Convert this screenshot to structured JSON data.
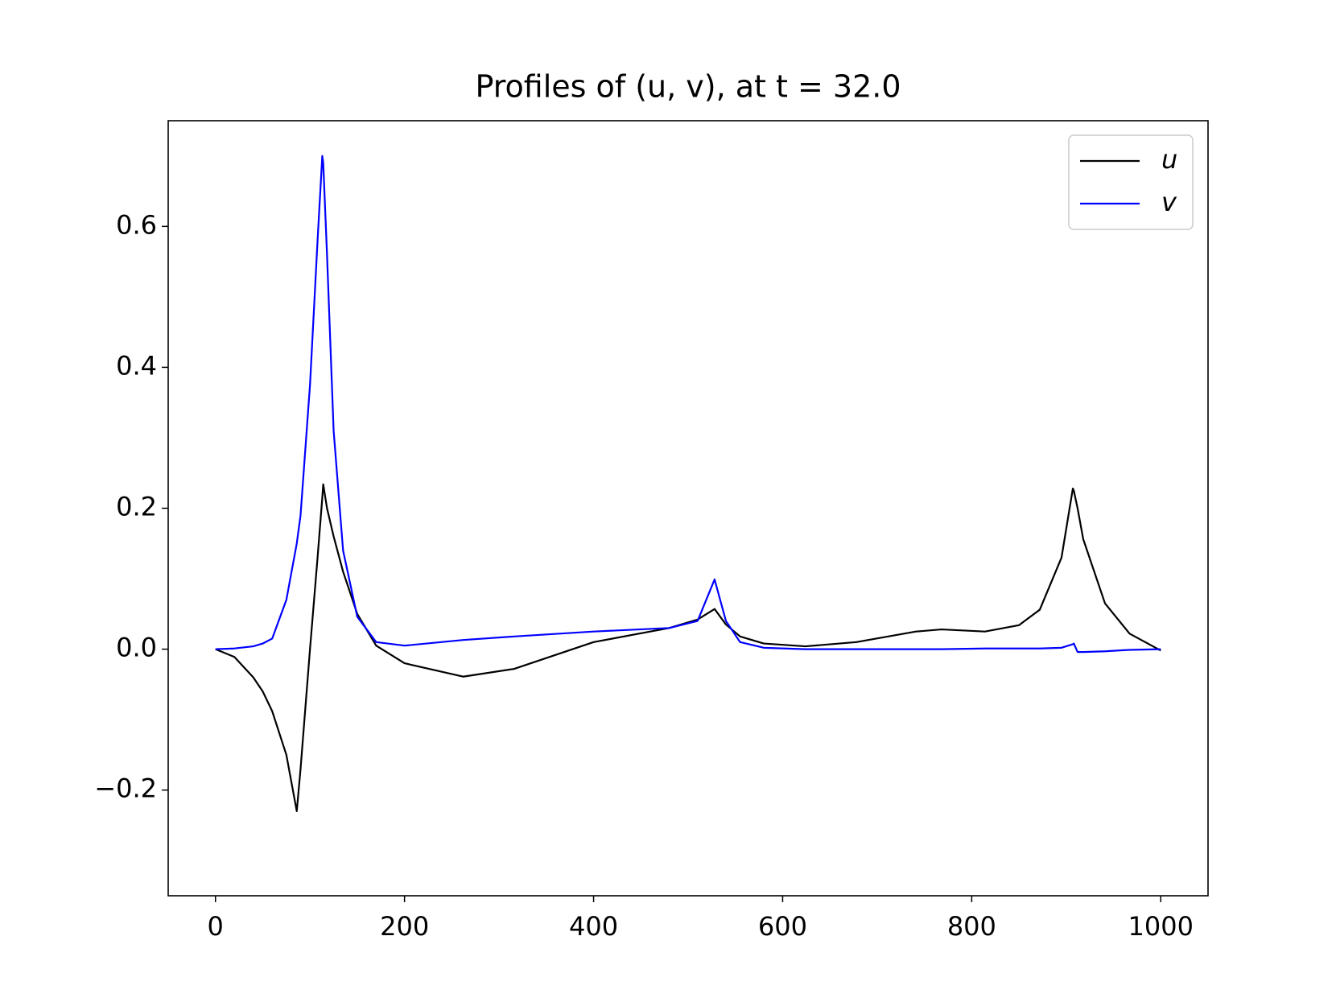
{
  "chart_data": {
    "type": "line",
    "title": "Profiles of (u, v), at t = 32.0",
    "x": [
      0,
      20,
      40,
      50,
      60,
      75,
      86,
      90,
      100,
      108,
      113,
      114,
      118,
      125,
      135,
      150,
      170,
      200,
      262,
      316,
      400,
      480,
      510,
      528,
      540,
      555,
      580,
      624,
      678,
      741,
      768,
      814,
      850,
      872,
      895,
      907,
      908,
      912,
      918,
      941,
      967,
      1000
    ],
    "series": [
      {
        "name": "u",
        "color": "#000000",
        "values": [
          0,
          -0.011,
          -0.04,
          -0.06,
          -0.088,
          -0.15,
          -0.23,
          -0.17,
          0.0,
          0.13,
          0.215,
          0.234,
          0.2,
          0.16,
          0.11,
          0.05,
          0.005,
          -0.02,
          -0.039,
          -0.028,
          0.01,
          0.03,
          0.042,
          0.057,
          0.035,
          0.018,
          0.008,
          0.004,
          0.01,
          0.025,
          0.028,
          0.025,
          0.034,
          0.056,
          0.13,
          0.228,
          0.225,
          0.2,
          0.156,
          0.065,
          0.022,
          -0.002
        ]
      },
      {
        "name": "v",
        "color": "#0000ff",
        "values": [
          0,
          0.001,
          0.004,
          0.008,
          0.015,
          0.07,
          0.15,
          0.19,
          0.375,
          0.58,
          0.7,
          0.69,
          0.56,
          0.31,
          0.14,
          0.046,
          0.01,
          0.005,
          0.013,
          0.018,
          0.025,
          0.03,
          0.04,
          0.099,
          0.04,
          0.01,
          0.002,
          0,
          0,
          0,
          0,
          0.001,
          0.001,
          0.001,
          0.002,
          0.007,
          0.008,
          -0.004,
          -0.004,
          -0.003,
          -0.001,
          0
        ]
      }
    ],
    "xlim": [
      -50,
      1050
    ],
    "ylim": [
      -0.35,
      0.75
    ],
    "xticks": [
      0,
      200,
      400,
      600,
      800,
      1000
    ],
    "yticks": [
      {
        "value": -0.2,
        "label": "−0.2"
      },
      {
        "value": 0,
        "label": "0.0"
      },
      0.2,
      0.4,
      0.6
    ],
    "legend": "upper right"
  }
}
